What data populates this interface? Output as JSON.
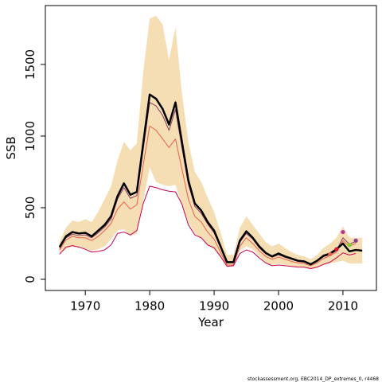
{
  "chart_data": {
    "type": "line",
    "xlabel": "Year",
    "ylabel": "SSB",
    "footnote": "stockassessment.org, EBC2014_DP_extremes_0, r4468",
    "x": [
      1966,
      1967,
      1968,
      1969,
      1970,
      1971,
      1972,
      1973,
      1974,
      1975,
      1976,
      1977,
      1978,
      1979,
      1980,
      1981,
      1982,
      1983,
      1984,
      1985,
      1986,
      1987,
      1988,
      1989,
      1990,
      1991,
      1992,
      1993,
      1994,
      1995,
      1996,
      1997,
      1998,
      1999,
      2000,
      2001,
      2002,
      2003,
      2004,
      2005,
      2006,
      2007,
      2008,
      2009,
      2010,
      2011,
      2012,
      2013
    ],
    "xlim": [
      1963.8,
      2015.2
    ],
    "xticks": [
      1970,
      1980,
      1990,
      2000,
      2010
    ],
    "ylim": [
      -78,
      1911
    ],
    "yticks": [
      0,
      500,
      1000,
      1500
    ],
    "band": {
      "color": "#f5deb3",
      "upper": [
        260,
        360,
        410,
        400,
        420,
        400,
        470,
        560,
        650,
        830,
        960,
        900,
        950,
        1450,
        1820,
        1840,
        1780,
        1530,
        1760,
        1300,
        960,
        750,
        680,
        570,
        470,
        330,
        170,
        170,
        360,
        440,
        380,
        320,
        260,
        230,
        250,
        220,
        190,
        170,
        160,
        140,
        170,
        220,
        250,
        290,
        370,
        290,
        290,
        290
      ],
      "lower": [
        180,
        210,
        230,
        220,
        215,
        200,
        210,
        230,
        280,
        340,
        350,
        300,
        320,
        550,
        780,
        680,
        660,
        650,
        660,
        520,
        400,
        320,
        290,
        240,
        210,
        150,
        90,
        90,
        200,
        230,
        210,
        160,
        120,
        100,
        110,
        100,
        95,
        85,
        80,
        70,
        80,
        100,
        110,
        120,
        130,
        110,
        110,
        110
      ]
    },
    "series": [
      {
        "color": "#8b3a62",
        "width": 1,
        "values": [
          215,
          290,
          315,
          305,
          310,
          290,
          325,
          365,
          420,
          560,
          640,
          565,
          585,
          910,
          1235,
          1210,
          1145,
          1040,
          1185,
          920,
          665,
          510,
          460,
          385,
          325,
          220,
          115,
          115,
          260,
          320,
          280,
          220,
          178,
          154,
          172,
          154,
          140,
          125,
          120,
          101,
          125,
          158,
          173,
          200,
          290,
          245,
          265,
          null
        ]
      },
      {
        "color": "#e8604c",
        "width": 1,
        "values": [
          205,
          275,
          300,
          290,
          290,
          270,
          300,
          340,
          390,
          490,
          540,
          490,
          520,
          800,
          1070,
          1040,
          980,
          920,
          980,
          770,
          560,
          440,
          400,
          330,
          280,
          190,
          100,
          100,
          230,
          290,
          250,
          200,
          160,
          140,
          155,
          140,
          125,
          115,
          110,
          95,
          115,
          145,
          165,
          190,
          270,
          230,
          250,
          null
        ]
      },
      {
        "color": "#c8004f",
        "width": 1,
        "values": [
          175,
          225,
          235,
          225,
          210,
          190,
          195,
          205,
          240,
          320,
          330,
          310,
          340,
          530,
          650,
          640,
          625,
          615,
          610,
          525,
          380,
          310,
          290,
          240,
          220,
          160,
          90,
          95,
          180,
          205,
          190,
          150,
          115,
          95,
          100,
          95,
          90,
          85,
          85,
          75,
          85,
          105,
          120,
          150,
          185,
          170,
          180,
          null
        ]
      },
      {
        "color": "#000000",
        "width": 2.5,
        "values": [
          225,
          300,
          330,
          320,
          325,
          300,
          340,
          380,
          440,
          580,
          670,
          590,
          610,
          950,
          1290,
          1260,
          1190,
          1080,
          1235,
          960,
          690,
          530,
          480,
          400,
          340,
          230,
          120,
          120,
          270,
          335,
          290,
          230,
          185,
          160,
          180,
          160,
          145,
          130,
          125,
          105,
          130,
          165,
          180,
          210,
          250,
          195,
          205,
          200
        ]
      }
    ],
    "points": {
      "x": [
        2008,
        2009,
        2010,
        2011,
        2012
      ],
      "values": [
        175,
        210,
        330,
        240,
        270
      ],
      "colors": [
        "#e8604c",
        "#e0102a",
        "#c0309a",
        "#7ccd32",
        "#8b3a9a"
      ]
    }
  }
}
